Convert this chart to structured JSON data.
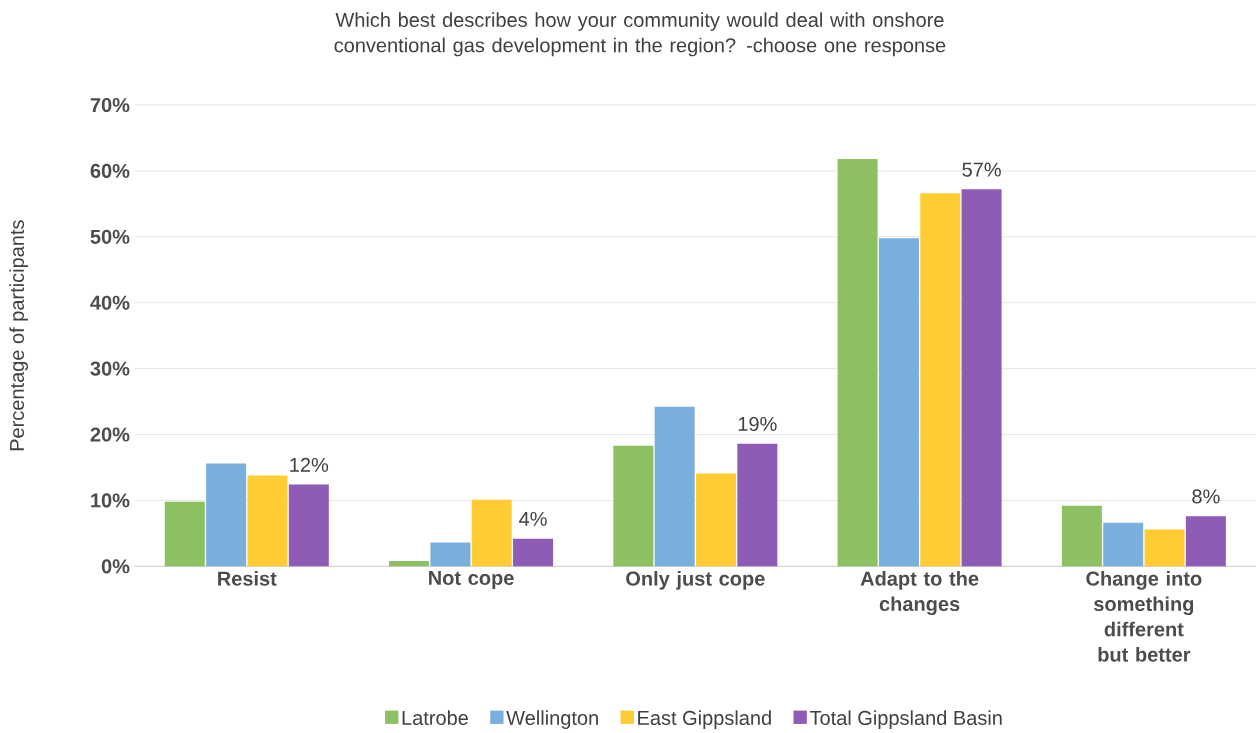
{
  "chart_data": {
    "type": "bar",
    "title": "Which best describes how your community would deal with onshore conventional gas development in the region? -choose one response",
    "ylabel": "Percentage of participants",
    "categories": [
      "Resist",
      "Not cope",
      "Only just cope",
      "Adapt to the changes",
      "Change into something different but better"
    ],
    "series": [
      {
        "name": "Latrobe",
        "color": "#8cc063",
        "values": [
          9.8,
          0.8,
          18.3,
          61.8,
          9.2
        ]
      },
      {
        "name": "Wellington",
        "color": "#7aafdd",
        "values": [
          15.6,
          3.6,
          24.2,
          49.8,
          6.6
        ]
      },
      {
        "name": "East Gippsland",
        "color": "#ffcc33",
        "values": [
          13.8,
          10.1,
          14.1,
          56.6,
          5.6
        ]
      },
      {
        "name": "Total Gippsland Basin",
        "color": "#8e5bb5",
        "values": [
          12.4,
          4.2,
          18.6,
          57.2,
          7.6
        ],
        "value_labels": [
          "12%",
          "4%",
          "19%",
          "57%",
          "8%"
        ]
      }
    ],
    "ylim": [
      0,
      70
    ],
    "yticks": [
      {
        "value": 0,
        "label": "0%"
      },
      {
        "value": 10,
        "label": "10%"
      },
      {
        "value": 20,
        "label": "20%"
      },
      {
        "value": 30,
        "label": "30%"
      },
      {
        "value": 40,
        "label": "40%"
      },
      {
        "value": 50,
        "label": "50%"
      },
      {
        "value": 60,
        "label": "60%"
      },
      {
        "value": 70,
        "label": "70%"
      }
    ],
    "grid": "y",
    "legend": "bottom"
  }
}
